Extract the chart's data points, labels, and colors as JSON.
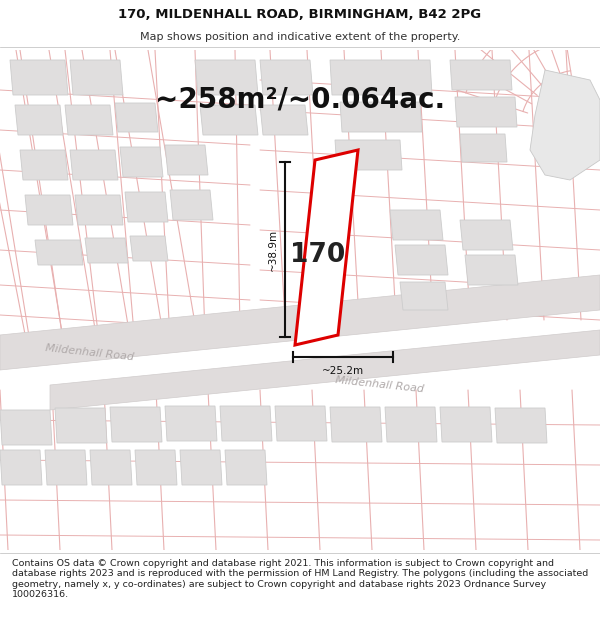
{
  "title_line1": "170, MILDENHALL ROAD, BIRMINGHAM, B42 2PG",
  "title_line2": "Map shows position and indicative extent of the property.",
  "area_text": "~258m²/~0.064ac.",
  "house_number": "170",
  "dim_height": "~38.9m",
  "dim_width": "~25.2m",
  "road_label1": "Mildenhall Road",
  "road_label2": "Mildenhall Road",
  "footer_text": "Contains OS data © Crown copyright and database right 2021. This information is subject to Crown copyright and database rights 2023 and is reproduced with the permission of HM Land Registry. The polygons (including the associated geometry, namely x, y co-ordinates) are subject to Crown copyright and database rights 2023 Ordnance Survey 100026316.",
  "map_bg": "#f7f5f5",
  "plot_color_edge": "#dd0000",
  "grid_line_color": "#e8b0b0",
  "building_fill": "#e0dede",
  "building_edge": "#cccccc",
  "title_fontsize": 9.5,
  "subtitle_fontsize": 8.0,
  "area_fontsize": 20,
  "footer_fontsize": 6.8
}
